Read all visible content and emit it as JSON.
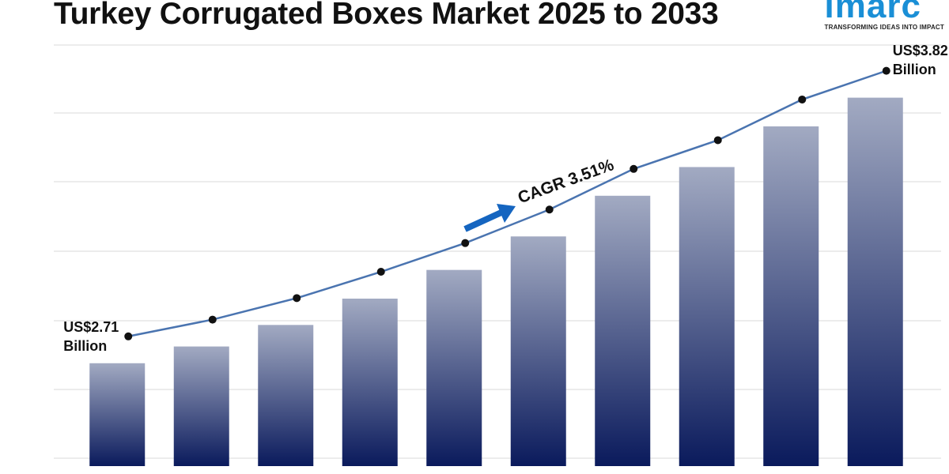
{
  "logo": {
    "word": "imarc",
    "tagline": "TRANSFORMING IDEAS INTO IMPACT"
  },
  "chart_data": {
    "type": "bar",
    "title": "Turkey Corrugated Boxes Market 2025 to 2033",
    "categories": [
      null,
      null,
      null,
      null,
      null,
      null,
      null,
      null,
      null,
      null
    ],
    "values": [
      2.71,
      2.78,
      2.87,
      2.98,
      3.1,
      3.24,
      3.41,
      3.53,
      3.7,
      3.82
    ],
    "value_labels": [
      "US$2.71 Billion",
      null,
      null,
      null,
      null,
      null,
      null,
      null,
      null,
      "US$3.82 Billion"
    ],
    "annotation": "CAGR 3.51%",
    "ylim": [
      2.28,
      4.04
    ],
    "color": "#0a1a5c",
    "line_color": "#4a74b0"
  }
}
